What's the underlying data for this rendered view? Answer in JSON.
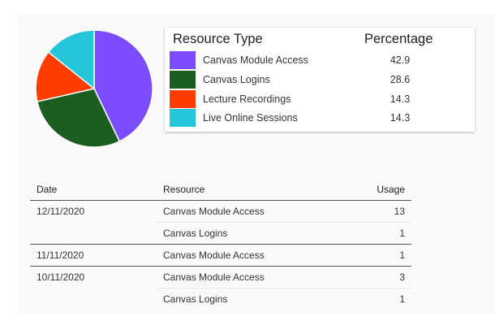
{
  "chart_data": {
    "type": "pie",
    "title": "",
    "legend_headers": {
      "type": "Resource Type",
      "percentage": "Percentage"
    },
    "slices": [
      {
        "label": "Canvas Module Access",
        "value": 42.9,
        "value_label": "42.9",
        "color": "#7c4dff"
      },
      {
        "label": "Canvas Logins",
        "value": 28.6,
        "value_label": "28.6",
        "color": "#1b5e20"
      },
      {
        "label": "Lecture Recordings",
        "value": 14.3,
        "value_label": "14.3",
        "color": "#ff3d00"
      },
      {
        "label": "Live Online Sessions",
        "value": 14.3,
        "value_label": "14.3",
        "color": "#26c6da"
      }
    ]
  },
  "table": {
    "headers": {
      "date": "Date",
      "resource": "Resource",
      "usage": "Usage"
    },
    "rows": [
      {
        "date": "12/11/2020",
        "resource": "Canvas Module Access",
        "usage": "13"
      },
      {
        "date": "",
        "resource": "Canvas Logins",
        "usage": "1"
      },
      {
        "date": "11/11/2020",
        "resource": "Canvas Module Access",
        "usage": "1"
      },
      {
        "date": "10/11/2020",
        "resource": "Canvas Module Access",
        "usage": "3"
      },
      {
        "date": "",
        "resource": "Canvas Logins",
        "usage": "1"
      }
    ]
  }
}
